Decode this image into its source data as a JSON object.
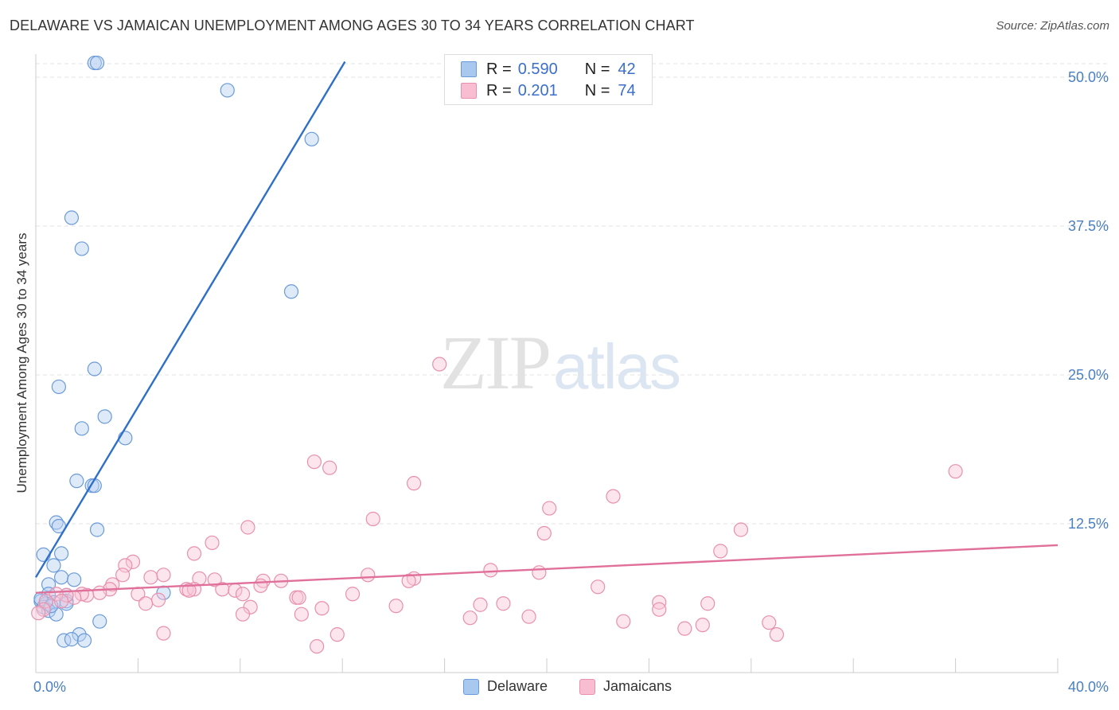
{
  "title": "DELAWARE VS JAMAICAN UNEMPLOYMENT AMONG AGES 30 TO 34 YEARS CORRELATION CHART",
  "source": "Source: ZipAtlas.com",
  "watermark": {
    "zip": "ZIP",
    "atlas": "atlas"
  },
  "legend": {
    "rows": [
      {
        "r_label": "R =",
        "r_value": "0.590",
        "n_label": "N =",
        "n_value": "42",
        "color": "#a9c8f0",
        "border": "#6a9bd8"
      },
      {
        "r_label": "R =",
        "r_value": "0.201",
        "n_label": "N =",
        "n_value": "74",
        "color": "#f8bdd0",
        "border": "#e890ad"
      }
    ]
  },
  "bottom_legend": {
    "delaware": "Delaware",
    "jamaicans": "Jamaicans"
  },
  "chart_data": {
    "type": "scatter",
    "title": "DELAWARE VS JAMAICAN UNEMPLOYMENT AMONG AGES 30 TO 34 YEARS CORRELATION CHART",
    "xlabel": "",
    "ylabel": "Unemployment Among Ages 30 to 34 years",
    "xlim": [
      0,
      40
    ],
    "ylim": [
      0,
      50
    ],
    "x_ticks": [
      {
        "value": 0,
        "label": "0.0%"
      },
      {
        "value": 40,
        "label": "40.0%"
      }
    ],
    "y_ticks": [
      {
        "value": 12.5,
        "label": "12.5%"
      },
      {
        "value": 25,
        "label": "25.0%"
      },
      {
        "value": 37.5,
        "label": "37.5%"
      },
      {
        "value": 50,
        "label": "50.0%"
      }
    ],
    "series": [
      {
        "name": "Delaware",
        "color": "#6a9bd8",
        "fill": "#b7d1f2",
        "line_color": "#2f6fc8",
        "trend": {
          "x": [
            0,
            12.1
          ],
          "y": [
            8.0,
            51.3
          ]
        },
        "points": [
          [
            2.3,
            51.2
          ],
          [
            2.4,
            51.2
          ],
          [
            7.5,
            48.9
          ],
          [
            10.8,
            44.8
          ],
          [
            1.4,
            38.2
          ],
          [
            1.8,
            35.6
          ],
          [
            10.0,
            32.0
          ],
          [
            2.3,
            25.5
          ],
          [
            0.9,
            24.0
          ],
          [
            2.7,
            21.5
          ],
          [
            1.8,
            20.5
          ],
          [
            3.5,
            19.7
          ],
          [
            1.6,
            16.1
          ],
          [
            2.2,
            15.7
          ],
          [
            2.3,
            15.7
          ],
          [
            0.8,
            12.6
          ],
          [
            0.9,
            12.3
          ],
          [
            2.4,
            12.0
          ],
          [
            0.3,
            9.9
          ],
          [
            1.0,
            10.0
          ],
          [
            0.7,
            9.0
          ],
          [
            1.0,
            8.0
          ],
          [
            1.5,
            7.8
          ],
          [
            0.5,
            7.4
          ],
          [
            0.5,
            6.6
          ],
          [
            1.2,
            6.5
          ],
          [
            5.0,
            6.7
          ],
          [
            1.2,
            6.0
          ],
          [
            0.2,
            6.0
          ],
          [
            0.4,
            5.8
          ],
          [
            0.7,
            5.9
          ],
          [
            1.2,
            5.8
          ],
          [
            0.3,
            5.5
          ],
          [
            0.5,
            5.2
          ],
          [
            0.8,
            4.9
          ],
          [
            0.2,
            6.2
          ],
          [
            2.5,
            4.3
          ],
          [
            1.7,
            3.2
          ],
          [
            1.1,
            2.7
          ],
          [
            1.4,
            2.8
          ],
          [
            1.9,
            2.7
          ],
          [
            0.6,
            5.6
          ]
        ]
      },
      {
        "name": "Jamaicans",
        "color": "#e890ad",
        "fill": "#f8c6d6",
        "line_color": "#e0709a",
        "trend": {
          "x": [
            0,
            40
          ],
          "y": [
            6.7,
            10.7
          ]
        },
        "points": [
          [
            15.8,
            25.9
          ],
          [
            36.0,
            16.9
          ],
          [
            10.9,
            17.7
          ],
          [
            11.5,
            17.2
          ],
          [
            22.6,
            14.8
          ],
          [
            14.8,
            15.9
          ],
          [
            13.2,
            12.9
          ],
          [
            20.1,
            13.8
          ],
          [
            8.3,
            12.2
          ],
          [
            19.9,
            11.7
          ],
          [
            27.6,
            12.0
          ],
          [
            6.9,
            10.9
          ],
          [
            6.2,
            10.0
          ],
          [
            26.8,
            10.2
          ],
          [
            3.8,
            9.3
          ],
          [
            3.5,
            9.0
          ],
          [
            3.4,
            8.2
          ],
          [
            4.5,
            8.0
          ],
          [
            5.0,
            8.2
          ],
          [
            6.4,
            7.9
          ],
          [
            7.0,
            7.8
          ],
          [
            8.9,
            7.7
          ],
          [
            9.6,
            7.7
          ],
          [
            8.8,
            7.3
          ],
          [
            13.0,
            8.2
          ],
          [
            14.8,
            7.9
          ],
          [
            14.6,
            7.7
          ],
          [
            17.8,
            8.6
          ],
          [
            19.7,
            8.4
          ],
          [
            3.0,
            7.4
          ],
          [
            2.9,
            7.0
          ],
          [
            2.5,
            6.7
          ],
          [
            2.0,
            6.5
          ],
          [
            1.8,
            6.6
          ],
          [
            1.5,
            6.3
          ],
          [
            1.2,
            6.5
          ],
          [
            0.8,
            6.6
          ],
          [
            5.9,
            7.0
          ],
          [
            6.2,
            7.0
          ],
          [
            7.3,
            7.0
          ],
          [
            7.8,
            6.9
          ],
          [
            8.1,
            6.6
          ],
          [
            10.2,
            6.3
          ],
          [
            12.4,
            6.6
          ],
          [
            4.0,
            6.6
          ],
          [
            4.8,
            6.1
          ],
          [
            4.3,
            5.8
          ],
          [
            1.0,
            6.0
          ],
          [
            0.4,
            6.0
          ],
          [
            0.3,
            5.3
          ],
          [
            0.1,
            5.0
          ],
          [
            8.4,
            5.5
          ],
          [
            8.1,
            4.9
          ],
          [
            10.4,
            4.9
          ],
          [
            11.2,
            5.4
          ],
          [
            14.1,
            5.6
          ],
          [
            17.4,
            5.7
          ],
          [
            18.3,
            5.8
          ],
          [
            19.3,
            4.7
          ],
          [
            17.0,
            4.6
          ],
          [
            24.4,
            5.9
          ],
          [
            26.3,
            5.8
          ],
          [
            26.1,
            4.0
          ],
          [
            22.0,
            7.2
          ],
          [
            24.4,
            5.3
          ],
          [
            25.4,
            3.7
          ],
          [
            23.0,
            4.3
          ],
          [
            28.7,
            4.2
          ],
          [
            29.0,
            3.2
          ],
          [
            5.0,
            3.3
          ],
          [
            11.8,
            3.2
          ],
          [
            11.0,
            2.2
          ],
          [
            10.3,
            6.3
          ],
          [
            6.0,
            6.9
          ]
        ]
      }
    ]
  }
}
